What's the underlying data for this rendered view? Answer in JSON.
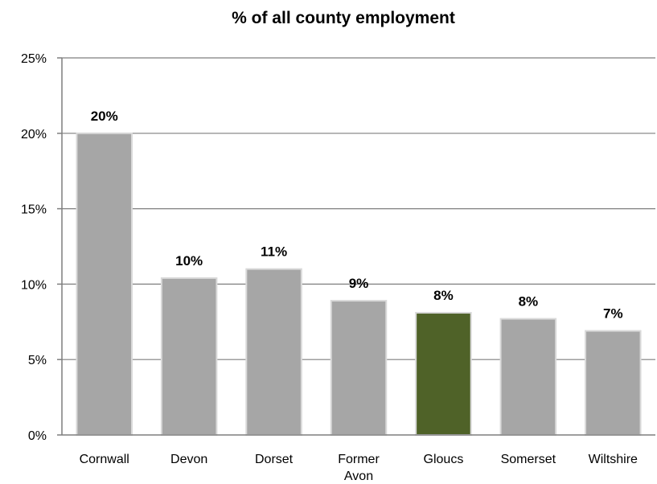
{
  "chart_data": {
    "type": "bar",
    "title": "% of all county employment",
    "xlabel": "",
    "ylabel": "",
    "ylim": [
      0,
      25
    ],
    "yticks": [
      "0%",
      "5%",
      "10%",
      "15%",
      "20%",
      "25%"
    ],
    "ytick_values": [
      0,
      5,
      10,
      15,
      20,
      25
    ],
    "grid": true,
    "categories": [
      [
        "Cornwall"
      ],
      [
        "Devon"
      ],
      [
        "Dorset"
      ],
      [
        "Former",
        "Avon"
      ],
      [
        "Gloucs"
      ],
      [
        "Somerset"
      ],
      [
        "Wiltshire"
      ]
    ],
    "values": [
      20.0,
      10.4,
      11.0,
      8.9,
      8.1,
      7.7,
      6.9
    ],
    "data_labels": [
      "20%",
      "10%",
      "11%",
      "9%",
      "8%",
      "8%",
      "7%"
    ],
    "colors": {
      "default_bar": "#a6a6a6",
      "highlight_bar": "#4f6228",
      "gridline": "#7f7f7f",
      "axis": "#7f7f7f"
    },
    "highlight_index": 4
  }
}
